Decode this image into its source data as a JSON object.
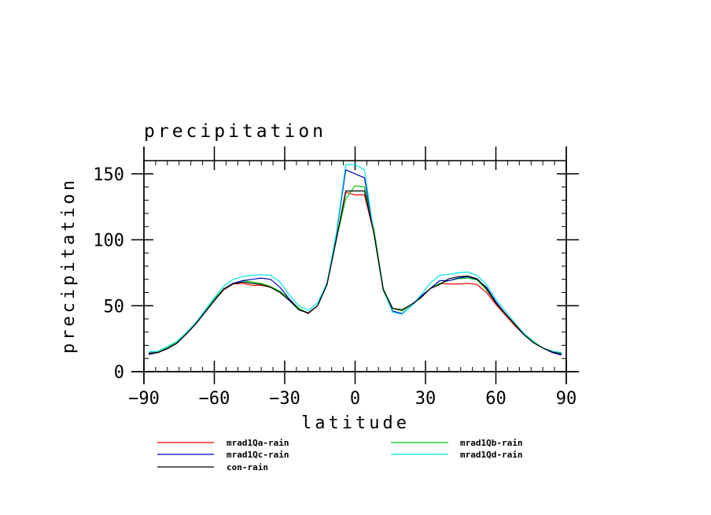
{
  "chart_data": {
    "type": "line",
    "title": "precipitation",
    "xlabel": "latitude",
    "ylabel": "precipitation",
    "xlim": [
      -90,
      90
    ],
    "ylim": [
      0,
      160
    ],
    "xticks": [
      -90,
      -60,
      -30,
      0,
      30,
      60,
      90
    ],
    "xtick_labels": [
      "−90",
      "−60",
      "−30",
      "0",
      "30",
      "60",
      "90"
    ],
    "yticks": [
      0,
      50,
      100,
      150
    ],
    "ytick_labels": [
      "0",
      "50",
      "100",
      "150"
    ],
    "grid": false,
    "legend_placement": "bottom",
    "x": [
      -88,
      -84,
      -80,
      -76,
      -72,
      -68,
      -64,
      -60,
      -56,
      -52,
      -48,
      -44,
      -40,
      -36,
      -32,
      -28,
      -24,
      -20,
      -16,
      -12,
      -8,
      -4,
      0,
      4,
      8,
      12,
      16,
      20,
      24,
      28,
      32,
      36,
      40,
      44,
      48,
      52,
      56,
      60,
      64,
      68,
      72,
      76,
      80,
      84,
      88
    ],
    "series": [
      {
        "name": "mrad1Qa-rain",
        "color": "#ff0000",
        "values": [
          13.5,
          14.5,
          17.5,
          21.5,
          28.5,
          36,
          45,
          54,
          62,
          66.5,
          67,
          65.5,
          65.5,
          64,
          61,
          55,
          48,
          44,
          50,
          66,
          100,
          136,
          134,
          134,
          105,
          62,
          48,
          46,
          51,
          56,
          63,
          67,
          66.5,
          66.5,
          67,
          66,
          60,
          51,
          43,
          35,
          28,
          22,
          18,
          15,
          13.5
        ]
      },
      {
        "name": "mrad1Qb-rain",
        "color": "#00cc00",
        "values": [
          14,
          15,
          18.5,
          22.5,
          29,
          37,
          46,
          55,
          63,
          67,
          69,
          68,
          67,
          64.5,
          61,
          55,
          48,
          44.5,
          50,
          66,
          100,
          131,
          141,
          140,
          108,
          63,
          48,
          46,
          51,
          56,
          63,
          67,
          69,
          70.5,
          71,
          69.5,
          62,
          52,
          44,
          36,
          29,
          23,
          18,
          15.5,
          14
        ]
      },
      {
        "name": "mrad1Qc-rain",
        "color": "#0000cc",
        "values": [
          13,
          14.5,
          17.5,
          21.5,
          28.5,
          36,
          45,
          54,
          62.5,
          67,
          69,
          70,
          71,
          70,
          64,
          55,
          47,
          44.5,
          50,
          66,
          104,
          153,
          150,
          147,
          105,
          62,
          46,
          44,
          50,
          57,
          63,
          69,
          69,
          71,
          72,
          70,
          64,
          53,
          44,
          36,
          28,
          22,
          18,
          14.5,
          12.5
        ]
      },
      {
        "name": "mrad1Qd-rain",
        "color": "#00e5e5",
        "values": [
          15,
          15.5,
          19,
          23,
          29.5,
          37,
          46.5,
          56,
          65,
          70,
          72,
          73,
          73.5,
          73,
          68,
          58,
          50,
          46.5,
          52,
          67,
          105,
          157,
          157,
          153,
          105,
          62,
          45,
          43.5,
          50,
          58,
          67,
          73,
          74,
          75,
          75.5,
          73,
          66,
          55,
          46,
          37,
          29,
          22.5,
          18,
          15.5,
          14.5
        ]
      },
      {
        "name": "con-rain",
        "color": "#000000",
        "values": [
          14,
          14.5,
          17.5,
          21.5,
          28.5,
          36,
          45,
          54,
          62.5,
          66.5,
          68,
          67,
          66,
          64,
          60,
          54,
          47,
          44.5,
          50,
          66,
          100,
          137,
          137,
          137,
          105,
          62,
          48,
          47,
          51,
          56,
          63,
          66,
          70.5,
          72,
          72.5,
          70.5,
          63,
          52,
          44,
          36,
          28,
          22,
          18,
          15,
          13.5
        ]
      }
    ]
  }
}
